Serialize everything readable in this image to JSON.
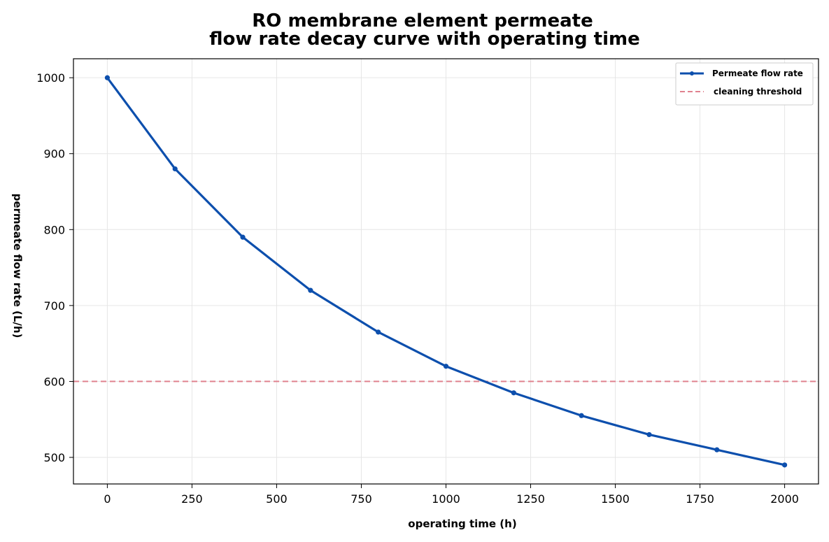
{
  "chart_data": {
    "type": "line",
    "title": "RO membrane element permeate flow rate decay curve with operating time",
    "title_lines": [
      "RO membrane element permeate",
      "flow rate decay curve with operating time"
    ],
    "xlabel": "operating time (h)",
    "ylabel": "permeate flow rate (L/h)",
    "xlim": [
      -100,
      2100
    ],
    "ylim": [
      465,
      1025
    ],
    "xticks": [
      0,
      250,
      500,
      750,
      1000,
      1250,
      1500,
      1750,
      2000
    ],
    "yticks": [
      500,
      600,
      700,
      800,
      900,
      1000
    ],
    "grid": true,
    "legend_position": "top-right",
    "series": [
      {
        "name": "Permeate flow rate",
        "style": "solid-with-markers",
        "color": "#0d4fad",
        "x": [
          0,
          200,
          400,
          600,
          800,
          1000,
          1200,
          1400,
          1600,
          1800,
          2000
        ],
        "y": [
          1000,
          880,
          790,
          720,
          665,
          620,
          585,
          555,
          530,
          510,
          490
        ]
      }
    ],
    "reference_lines": [
      {
        "name": "cleaning threshold",
        "orientation": "horizontal",
        "value": 600,
        "style": "dashed",
        "color": "#e0828f"
      }
    ]
  }
}
